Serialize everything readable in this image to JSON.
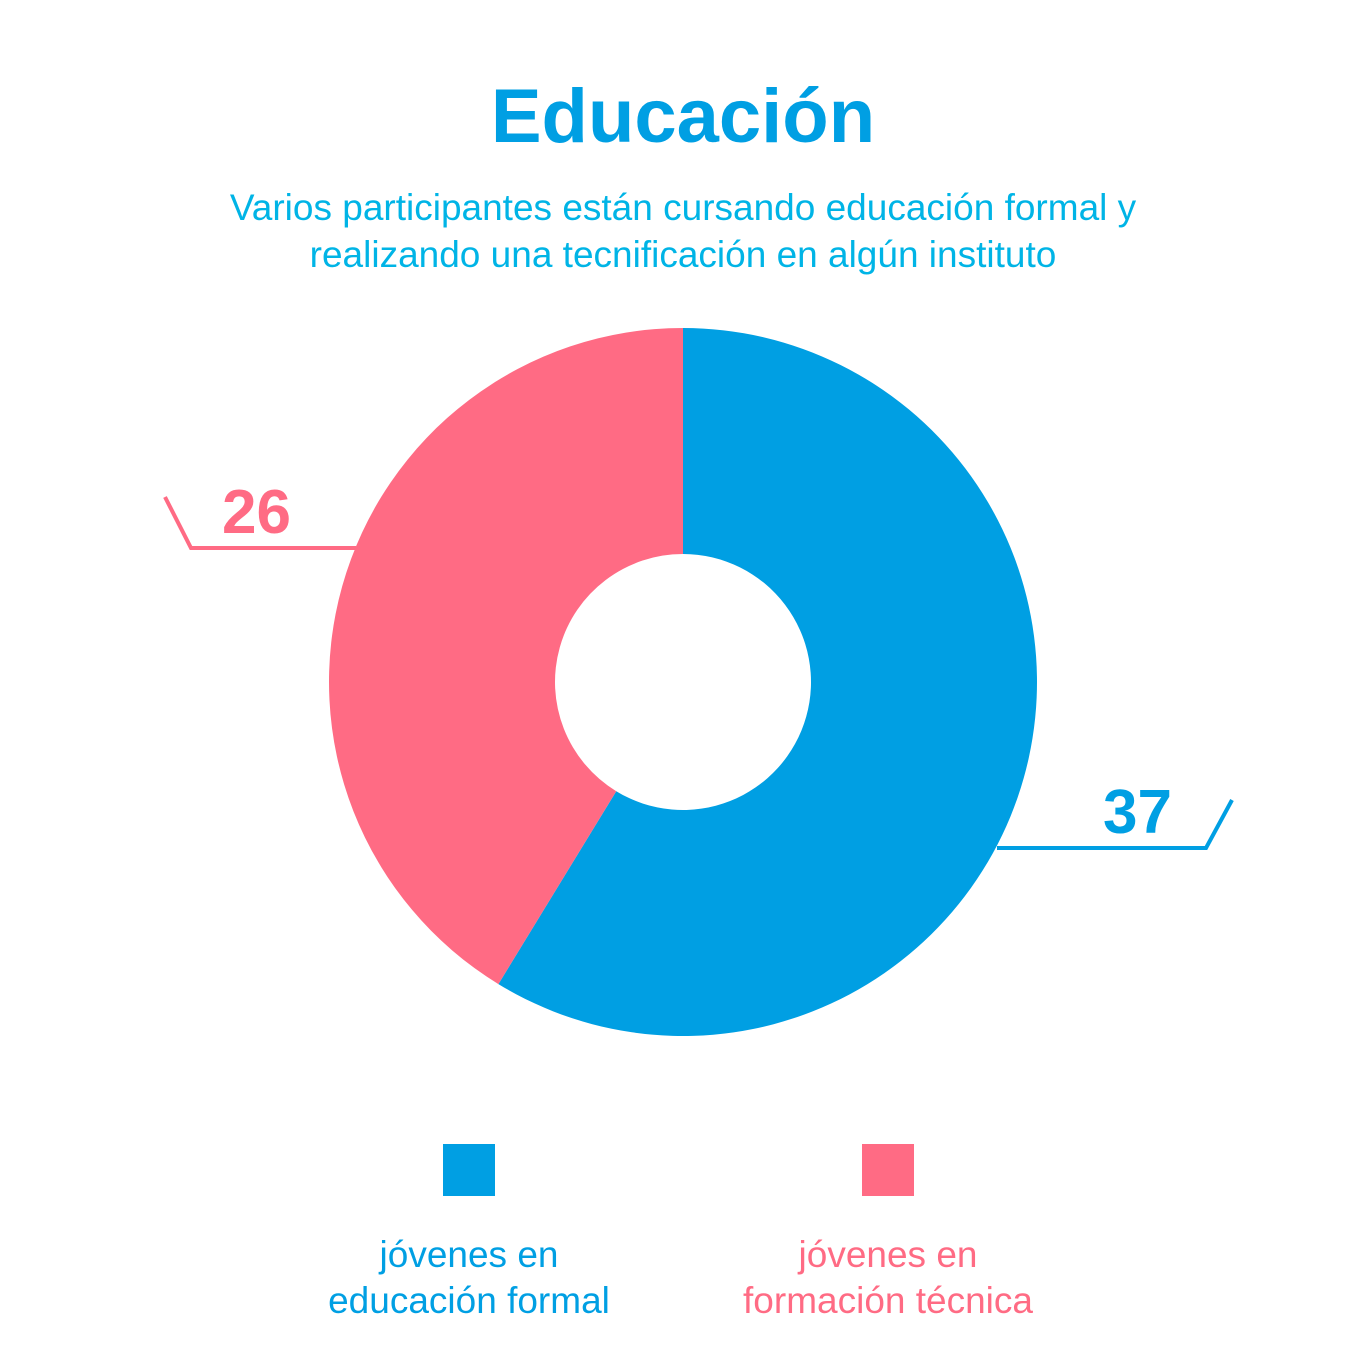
{
  "title": "Educación",
  "subtitle": {
    "line1": "Varios participantes están  cursando educación formal y",
    "line2": "realizando una tecnificación en algún instituto"
  },
  "colors": {
    "accent": "#009fe3",
    "subtitle": "#00b4e6",
    "formal": "#009fe3",
    "tecnica": "#ff6b84"
  },
  "chart_data": {
    "type": "pie",
    "donut": true,
    "categories": [
      "jóvenes en educación formal",
      "jóvenes en formación técnica"
    ],
    "values": [
      37,
      26
    ],
    "data_labels": [
      "37",
      "26"
    ],
    "colors": [
      "#009fe3",
      "#ff6b84"
    ],
    "legend_position": "bottom"
  },
  "legend": [
    {
      "line1": "jóvenes en",
      "line2": "educación formal",
      "color": "#009fe3"
    },
    {
      "line1": "jóvenes en",
      "line2": "formación técnica",
      "color": "#ff6b84"
    }
  ]
}
